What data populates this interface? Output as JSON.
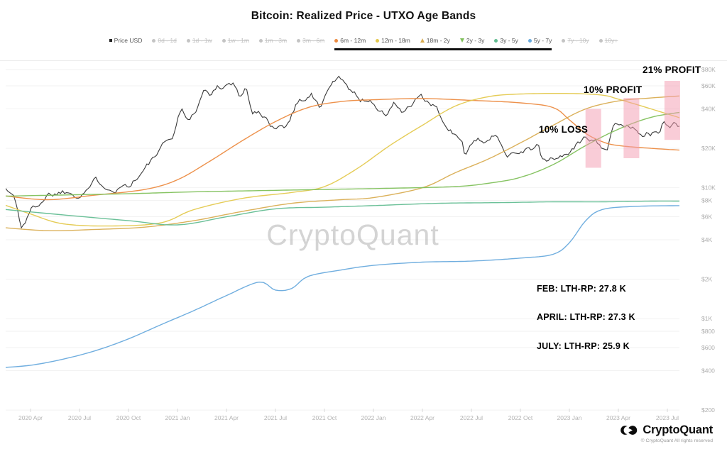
{
  "title": "Bitcoin: Realized Price - UTXO Age Bands",
  "watermark": "CryptoQuant",
  "annotations": {
    "profit21": "21% PROFIT",
    "profit10": "10% PROFIT",
    "loss10": "10% LOSS",
    "feb": "FEB: LTH-RP: 27.8 K",
    "april": "APRIL: LTH-RP: 27.3 K",
    "july": "JULY: LTH-RP: 25.9 K"
  },
  "footer": {
    "brand": "CryptoQuant",
    "copyright": "© CryptoQuant All rights reserved"
  },
  "legend": {
    "price_item": {
      "label": "Price USD",
      "marker": "square",
      "color": "#222222"
    },
    "disabled_left": [
      {
        "label": "0d - 1d"
      },
      {
        "label": "1d - 1w"
      },
      {
        "label": "1w - 1m"
      },
      {
        "label": "1m - 3m"
      },
      {
        "label": "3m - 6m"
      }
    ],
    "active": [
      {
        "label": "6m - 12m",
        "marker": "circle",
        "color": "#ec8b41"
      },
      {
        "label": "12m - 18m",
        "marker": "circle",
        "color": "#e4c94e"
      },
      {
        "label": "18m - 2y",
        "marker": "tri-up",
        "color": "#d9ad52"
      },
      {
        "label": "2y - 3y",
        "marker": "tri-down",
        "color": "#7fc05a"
      },
      {
        "label": "3y - 5y",
        "marker": "circle",
        "color": "#63bd92"
      },
      {
        "label": "5y - 7y",
        "marker": "circle",
        "color": "#68aadd"
      }
    ],
    "disabled_right": [
      {
        "label": "7y - 10y"
      },
      {
        "label": "10y+"
      }
    ],
    "disabled_color": "#c4c4c4"
  },
  "chart_data": {
    "type": "line",
    "y_axis": {
      "scale": "log",
      "side": "right",
      "ticks": [
        {
          "value": 80000,
          "label": "$80K"
        },
        {
          "value": 60000,
          "label": "$60K"
        },
        {
          "value": 40000,
          "label": "$40K"
        },
        {
          "value": 20000,
          "label": "$20K"
        },
        {
          "value": 10000,
          "label": "$10K"
        },
        {
          "value": 8000,
          "label": "$8K"
        },
        {
          "value": 6000,
          "label": "$6K"
        },
        {
          "value": 4000,
          "label": "$4K"
        },
        {
          "value": 2000,
          "label": "$2K"
        },
        {
          "value": 1000,
          "label": "$1K"
        },
        {
          "value": 800,
          "label": "$800"
        },
        {
          "value": 600,
          "label": "$600"
        },
        {
          "value": 400,
          "label": "$400"
        },
        {
          "value": 200,
          "label": "$200"
        }
      ]
    },
    "x_axis": {
      "ticks": [
        {
          "date": "2020-04",
          "label": "2020 Apr"
        },
        {
          "date": "2020-07",
          "label": "2020 Jul"
        },
        {
          "date": "2020-10",
          "label": "2020 Oct"
        },
        {
          "date": "2021-01",
          "label": "2021 Jan"
        },
        {
          "date": "2021-04",
          "label": "2021 Apr"
        },
        {
          "date": "2021-07",
          "label": "2021 Jul"
        },
        {
          "date": "2021-10",
          "label": "2021 Oct"
        },
        {
          "date": "2022-01",
          "label": "2022 Jan"
        },
        {
          "date": "2022-04",
          "label": "2022 Apr"
        },
        {
          "date": "2022-07",
          "label": "2022 Jul"
        },
        {
          "date": "2022-10",
          "label": "2022 Oct"
        },
        {
          "date": "2023-01",
          "label": "2023 Jan"
        },
        {
          "date": "2023-04",
          "label": "2023 Apr"
        },
        {
          "date": "2023-07",
          "label": "2023 Jul"
        }
      ]
    },
    "highlight_bars": [
      {
        "date": "2023-02-15",
        "top": 40000,
        "bottom": 14200,
        "color": "rgba(244,153,176,0.5)"
      },
      {
        "date": "2023-04-25",
        "top": 48500,
        "bottom": 16800,
        "color": "rgba(244,153,176,0.5)"
      },
      {
        "date": "2023-07-10",
        "top": 65500,
        "bottom": 23200,
        "color": "rgba(244,153,176,0.5)"
      }
    ],
    "series": [
      {
        "name": "Price USD",
        "color": "#2e2e2e",
        "style": "jagged",
        "points": [
          [
            "2020-02-01",
            9400
          ],
          [
            "2020-02-15",
            9900
          ],
          [
            "2020-03-01",
            8600
          ],
          [
            "2020-03-14",
            5000
          ],
          [
            "2020-04-01",
            6600
          ],
          [
            "2020-05-01",
            8900
          ],
          [
            "2020-06-01",
            9500
          ],
          [
            "2020-07-01",
            9150
          ],
          [
            "2020-08-01",
            11300
          ],
          [
            "2020-09-05",
            10200
          ],
          [
            "2020-10-01",
            10700
          ],
          [
            "2020-11-01",
            13800
          ],
          [
            "2020-12-01",
            19500
          ],
          [
            "2020-12-20",
            23500
          ],
          [
            "2021-01-08",
            40000
          ],
          [
            "2021-01-25",
            32500
          ],
          [
            "2021-02-21",
            57000
          ],
          [
            "2021-03-01",
            49500
          ],
          [
            "2021-03-13",
            60000
          ],
          [
            "2021-04-14",
            63500
          ],
          [
            "2021-04-25",
            49500
          ],
          [
            "2021-05-08",
            58000
          ],
          [
            "2021-05-19",
            37000
          ],
          [
            "2021-06-01",
            36500
          ],
          [
            "2021-06-22",
            29800
          ],
          [
            "2021-07-20",
            30000
          ],
          [
            "2021-08-10",
            45500
          ],
          [
            "2021-09-07",
            52500
          ],
          [
            "2021-09-21",
            40500
          ],
          [
            "2021-10-20",
            66000
          ],
          [
            "2021-11-08",
            67500
          ],
          [
            "2021-12-04",
            47500
          ],
          [
            "2022-01-01",
            46500
          ],
          [
            "2022-01-22",
            35500
          ],
          [
            "2022-02-10",
            44000
          ],
          [
            "2022-02-24",
            37500
          ],
          [
            "2022-03-28",
            47500
          ],
          [
            "2022-04-30",
            38500
          ],
          [
            "2022-05-12",
            28500
          ],
          [
            "2022-06-13",
            22500
          ],
          [
            "2022-06-18",
            18500
          ],
          [
            "2022-07-08",
            21500
          ],
          [
            "2022-08-14",
            24500
          ],
          [
            "2022-09-06",
            19000
          ],
          [
            "2022-10-01",
            19500
          ],
          [
            "2022-11-05",
            21000
          ],
          [
            "2022-11-09",
            16000
          ],
          [
            "2022-12-15",
            17000
          ],
          [
            "2023-01-14",
            20800
          ],
          [
            "2023-01-29",
            23800
          ],
          [
            "2023-02-15",
            24500
          ],
          [
            "2023-03-10",
            20200
          ],
          [
            "2023-03-22",
            28300
          ],
          [
            "2023-04-14",
            30500
          ],
          [
            "2023-04-26",
            28500
          ],
          [
            "2023-05-17",
            27000
          ],
          [
            "2023-06-15",
            25500
          ],
          [
            "2023-06-23",
            30500
          ],
          [
            "2023-07-13",
            31500
          ],
          [
            "2023-07-24",
            29200
          ],
          [
            "2023-08-07",
            29200
          ]
        ]
      },
      {
        "name": "6m - 12m",
        "color": "#ec8b41",
        "style": "smooth",
        "points": [
          [
            "2020-02",
            8800
          ],
          [
            "2020-05",
            8100
          ],
          [
            "2020-08",
            8800
          ],
          [
            "2020-11",
            9700
          ],
          [
            "2021-01",
            11500
          ],
          [
            "2021-03",
            16000
          ],
          [
            "2021-05",
            23000
          ],
          [
            "2021-07",
            32000
          ],
          [
            "2021-09",
            41000
          ],
          [
            "2021-11",
            45500
          ],
          [
            "2022-01",
            47000
          ],
          [
            "2022-04",
            48000
          ],
          [
            "2022-07",
            46500
          ],
          [
            "2022-10",
            44500
          ],
          [
            "2022-12",
            41000
          ],
          [
            "2023-01",
            33000
          ],
          [
            "2023-02",
            26000
          ],
          [
            "2023-03",
            22500
          ],
          [
            "2023-04",
            21000
          ],
          [
            "2023-06",
            20000
          ],
          [
            "2023-08",
            19300
          ]
        ]
      },
      {
        "name": "12m - 18m",
        "color": "#e4c94e",
        "style": "smooth",
        "points": [
          [
            "2020-02",
            7700
          ],
          [
            "2020-04",
            6300
          ],
          [
            "2020-06",
            5300
          ],
          [
            "2020-09",
            5100
          ],
          [
            "2020-12",
            5400
          ],
          [
            "2021-02",
            6800
          ],
          [
            "2021-05",
            8300
          ],
          [
            "2021-08",
            9200
          ],
          [
            "2021-10",
            10200
          ],
          [
            "2021-12",
            14000
          ],
          [
            "2022-02",
            21000
          ],
          [
            "2022-04",
            30000
          ],
          [
            "2022-06",
            42000
          ],
          [
            "2022-08",
            49500
          ],
          [
            "2022-10",
            52000
          ],
          [
            "2023-01",
            52500
          ],
          [
            "2023-03",
            51000
          ],
          [
            "2023-04",
            47500
          ],
          [
            "2023-06",
            40000
          ],
          [
            "2023-08",
            33500
          ]
        ]
      },
      {
        "name": "18m - 2y",
        "color": "#d9ad52",
        "style": "smooth",
        "points": [
          [
            "2020-02",
            5000
          ],
          [
            "2020-05",
            4700
          ],
          [
            "2020-08",
            4800
          ],
          [
            "2020-11",
            5000
          ],
          [
            "2021-02",
            5600
          ],
          [
            "2021-05",
            6600
          ],
          [
            "2021-08",
            7600
          ],
          [
            "2021-11",
            8100
          ],
          [
            "2022-01",
            8400
          ],
          [
            "2022-04",
            10000
          ],
          [
            "2022-06",
            13000
          ],
          [
            "2022-08",
            16500
          ],
          [
            "2022-10",
            22000
          ],
          [
            "2022-12",
            30000
          ],
          [
            "2023-02",
            40000
          ],
          [
            "2023-04",
            46000
          ],
          [
            "2023-06",
            48500
          ],
          [
            "2023-08",
            50500
          ]
        ]
      },
      {
        "name": "2y - 3y",
        "color": "#7fc05a",
        "style": "smooth",
        "points": [
          [
            "2020-02",
            8600
          ],
          [
            "2020-06",
            8800
          ],
          [
            "2020-10",
            9000
          ],
          [
            "2021-02",
            9300
          ],
          [
            "2021-06",
            9500
          ],
          [
            "2021-10",
            9700
          ],
          [
            "2022-02",
            9900
          ],
          [
            "2022-06",
            10200
          ],
          [
            "2022-08",
            10800
          ],
          [
            "2022-10",
            12000
          ],
          [
            "2022-12",
            15000
          ],
          [
            "2023-02",
            21000
          ],
          [
            "2023-04",
            28000
          ],
          [
            "2023-06",
            34500
          ],
          [
            "2023-08",
            38000
          ]
        ]
      },
      {
        "name": "3y - 5y",
        "color": "#63bd92",
        "style": "smooth",
        "points": [
          [
            "2020-02",
            6900
          ],
          [
            "2020-06",
            6200
          ],
          [
            "2020-10",
            5600
          ],
          [
            "2021-01",
            5200
          ],
          [
            "2021-04",
            6000
          ],
          [
            "2021-07",
            6900
          ],
          [
            "2021-10",
            7100
          ],
          [
            "2022-01",
            7300
          ],
          [
            "2022-05",
            7600
          ],
          [
            "2022-09",
            7700
          ],
          [
            "2022-12",
            7800
          ],
          [
            "2023-03",
            7800
          ],
          [
            "2023-06",
            7900
          ],
          [
            "2023-08",
            7900
          ]
        ]
      },
      {
        "name": "5y - 7y",
        "color": "#68aadd",
        "style": "smooth",
        "points": [
          [
            "2020-02",
            420
          ],
          [
            "2020-04",
            440
          ],
          [
            "2020-06",
            490
          ],
          [
            "2020-08",
            570
          ],
          [
            "2020-10",
            700
          ],
          [
            "2020-12",
            900
          ],
          [
            "2021-02",
            1150
          ],
          [
            "2021-04",
            1500
          ],
          [
            "2021-06",
            1900
          ],
          [
            "2021-07",
            1650
          ],
          [
            "2021-08",
            1700
          ],
          [
            "2021-09",
            2100
          ],
          [
            "2021-11",
            2350
          ],
          [
            "2022-01",
            2550
          ],
          [
            "2022-04",
            2700
          ],
          [
            "2022-07",
            2750
          ],
          [
            "2022-10",
            2900
          ],
          [
            "2022-12",
            3100
          ],
          [
            "2023-01",
            3800
          ],
          [
            "2023-02",
            5600
          ],
          [
            "2023-03",
            6800
          ],
          [
            "2023-05",
            7200
          ],
          [
            "2023-08",
            7300
          ]
        ]
      }
    ]
  }
}
